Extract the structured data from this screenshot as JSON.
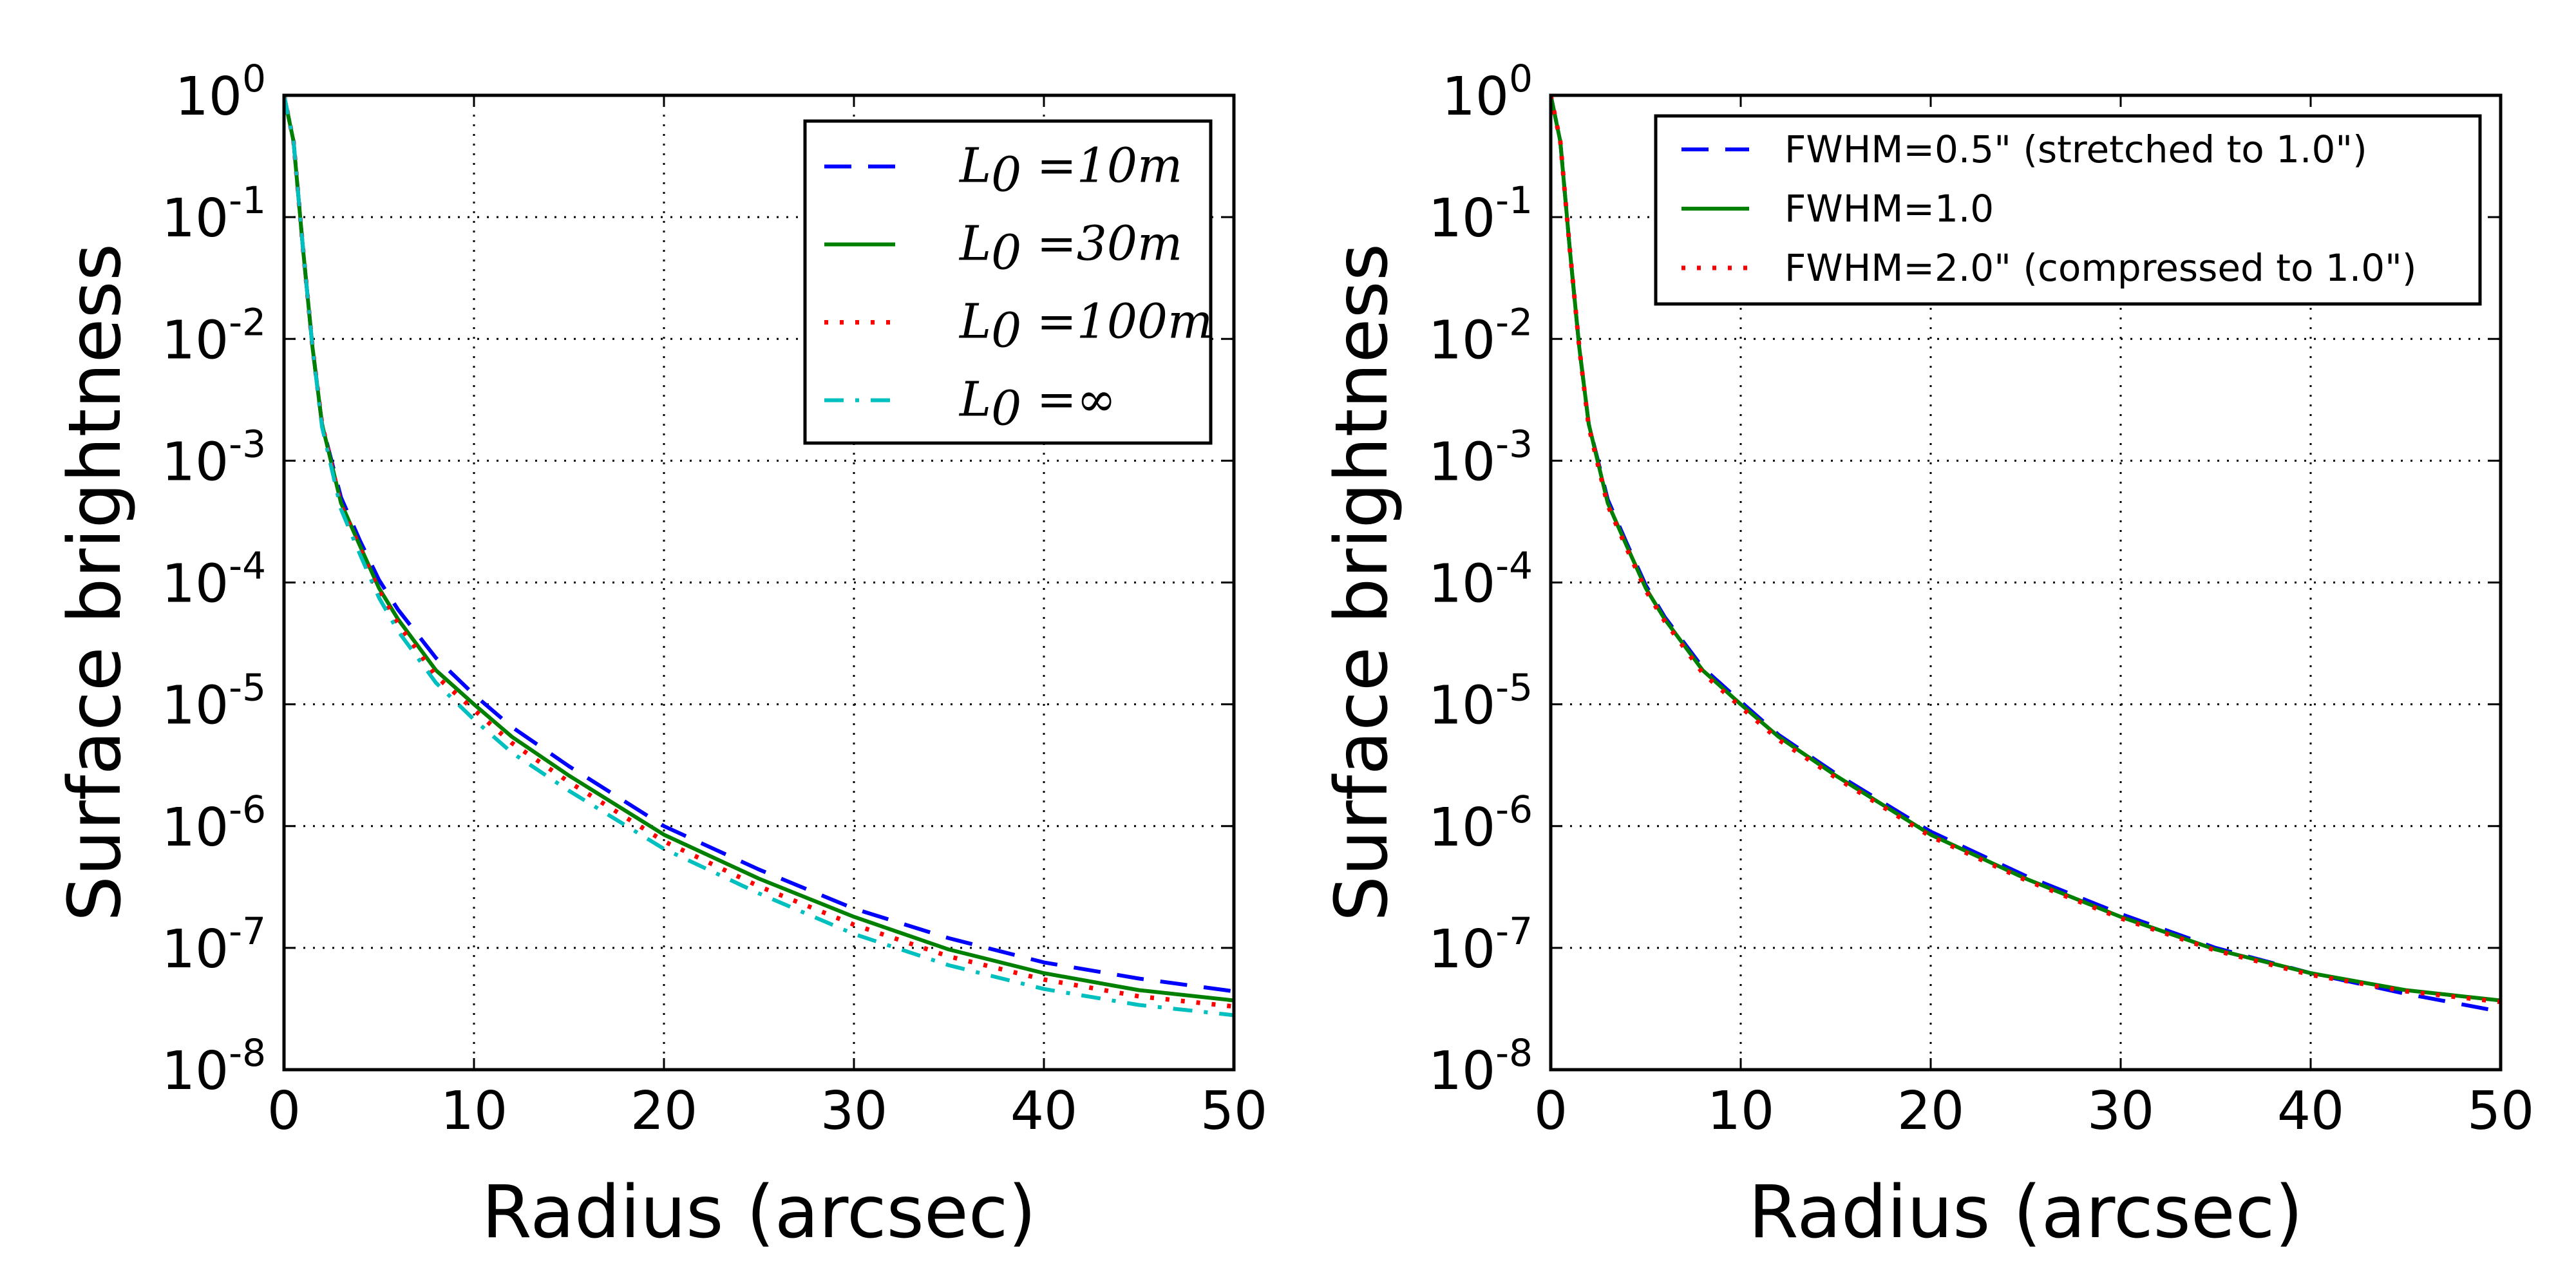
{
  "chart_data": [
    {
      "type": "line",
      "xscale": "linear",
      "yscale": "log",
      "xlabel": "Radius (arcsec)",
      "ylabel": "Surface brightness",
      "xlim": [
        0,
        50
      ],
      "ylim": [
        1e-08,
        1
      ],
      "grid": true,
      "legend_position": "top-right",
      "xticks": [
        "0",
        "10",
        "20",
        "30",
        "40",
        "50"
      ],
      "yticks": [
        {
          "base": "10",
          "exp": "0"
        },
        {
          "base": "10",
          "exp": "-1"
        },
        {
          "base": "10",
          "exp": "-2"
        },
        {
          "base": "10",
          "exp": "-3"
        },
        {
          "base": "10",
          "exp": "-4"
        },
        {
          "base": "10",
          "exp": "-5"
        },
        {
          "base": "10",
          "exp": "-6"
        },
        {
          "base": "10",
          "exp": "-7"
        },
        {
          "base": "10",
          "exp": "-8"
        }
      ],
      "series": [
        {
          "name": "L0 = 10m",
          "legend_math": "L",
          "legend_sub": "0",
          "legend_rest": " =10",
          "legend_unit": "m",
          "color": "#0000ff",
          "style": "dashed",
          "x": [
            0,
            0.5,
            1,
            1.5,
            2,
            3,
            4,
            5,
            6,
            8,
            10,
            12,
            15,
            20,
            25,
            30,
            35,
            40,
            45,
            50
          ],
          "y": [
            1,
            0.42,
            0.055,
            0.0085,
            0.002,
            0.0005,
            0.00022,
            0.000105,
            6e-05,
            2.4e-05,
            1.2e-05,
            6.5e-06,
            3.1e-06,
            1e-06,
            4.4e-07,
            2.1e-07,
            1.2e-07,
            7.6e-08,
            5.6e-08,
            4.4e-08
          ]
        },
        {
          "name": "L0 = 30m",
          "legend_math": "L",
          "legend_sub": "0",
          "legend_rest": " =30",
          "legend_unit": "m",
          "color": "#008000",
          "style": "solid",
          "x": [
            0,
            0.5,
            1,
            1.5,
            2,
            3,
            4,
            5,
            6,
            8,
            10,
            12,
            15,
            20,
            25,
            30,
            35,
            40,
            45,
            50
          ],
          "y": [
            1,
            0.42,
            0.055,
            0.0085,
            0.002,
            0.00045,
            0.0002,
            9e-05,
            5e-05,
            1.9e-05,
            1e-05,
            5.4e-06,
            2.6e-06,
            8.5e-07,
            3.7e-07,
            1.8e-07,
            9.7e-08,
            6.2e-08,
            4.5e-08,
            3.7e-08
          ]
        },
        {
          "name": "L0 = 100m",
          "legend_math": "L",
          "legend_sub": "0",
          "legend_rest": " =100",
          "legend_unit": "m",
          "color": "#ff0000",
          "style": "dotted",
          "x": [
            0,
            0.5,
            1,
            1.5,
            2,
            3,
            4,
            5,
            6,
            8,
            10,
            12,
            15,
            20,
            25,
            30,
            35,
            40,
            45,
            50
          ],
          "y": [
            1,
            0.42,
            0.055,
            0.0085,
            0.002,
            0.00043,
            0.00019,
            8.5e-05,
            4.6e-05,
            1.7e-05,
            9e-06,
            4.8e-06,
            2.3e-06,
            7.5e-07,
            3.2e-07,
            1.55e-07,
            8.5e-08,
            5.5e-08,
            4e-08,
            3.3e-08
          ]
        },
        {
          "name": "L0 = ∞",
          "legend_math": "L",
          "legend_sub": "0",
          "legend_rest": " =∞",
          "legend_unit": "",
          "color": "#00bfbf",
          "style": "dashdot",
          "x": [
            0,
            0.5,
            1,
            1.5,
            2,
            3,
            4,
            5,
            6,
            8,
            10,
            12,
            15,
            20,
            25,
            30,
            35,
            40,
            45,
            50
          ],
          "y": [
            1,
            0.42,
            0.055,
            0.0085,
            0.0019,
            0.0004,
            0.00017,
            7.5e-05,
            4e-05,
            1.5e-05,
            7.5e-06,
            4e-06,
            1.95e-06,
            6.5e-07,
            2.8e-07,
            1.3e-07,
            7.2e-08,
            4.6e-08,
            3.4e-08,
            2.8e-08
          ]
        }
      ]
    },
    {
      "type": "line",
      "xscale": "linear",
      "yscale": "log",
      "xlabel": "Radius (arcsec)",
      "ylabel": "Surface brightness",
      "xlim": [
        0,
        50
      ],
      "ylim": [
        1e-08,
        1
      ],
      "grid": true,
      "legend_position": "top-right",
      "xticks": [
        "0",
        "10",
        "20",
        "30",
        "40",
        "50"
      ],
      "yticks": [
        {
          "base": "10",
          "exp": "0"
        },
        {
          "base": "10",
          "exp": "-1"
        },
        {
          "base": "10",
          "exp": "-2"
        },
        {
          "base": "10",
          "exp": "-3"
        },
        {
          "base": "10",
          "exp": "-4"
        },
        {
          "base": "10",
          "exp": "-5"
        },
        {
          "base": "10",
          "exp": "-6"
        },
        {
          "base": "10",
          "exp": "-7"
        },
        {
          "base": "10",
          "exp": "-8"
        }
      ],
      "series": [
        {
          "name": "FWHM=0.5\" (stretched to 1.0\")",
          "color": "#0000ff",
          "style": "dashed",
          "x": [
            0,
            0.5,
            1,
            1.5,
            2,
            3,
            4,
            5,
            6,
            8,
            10,
            12,
            15,
            20,
            25,
            30,
            35,
            40,
            45,
            50
          ],
          "y": [
            1,
            0.42,
            0.055,
            0.0085,
            0.002,
            0.00048,
            0.00021,
            9.5e-05,
            5.2e-05,
            2e-05,
            1.05e-05,
            5.6e-06,
            2.7e-06,
            9e-07,
            3.9e-07,
            1.9e-07,
            1e-07,
            6.2e-08,
            4.2e-08,
            3e-08
          ]
        },
        {
          "name": "FWHM=1.0",
          "color": "#008000",
          "style": "solid",
          "x": [
            0,
            0.5,
            1,
            1.5,
            2,
            3,
            4,
            5,
            6,
            8,
            10,
            12,
            15,
            20,
            25,
            30,
            35,
            40,
            45,
            50
          ],
          "y": [
            1,
            0.42,
            0.055,
            0.0085,
            0.002,
            0.00045,
            0.0002,
            9e-05,
            5e-05,
            1.9e-05,
            1e-05,
            5.4e-06,
            2.6e-06,
            8.5e-07,
            3.7e-07,
            1.8e-07,
            9.7e-08,
            6.2e-08,
            4.5e-08,
            3.7e-08
          ]
        },
        {
          "name": "FWHM=2.0\" (compressed to 1.0\")",
          "color": "#ff0000",
          "style": "dotted",
          "x": [
            0,
            0.5,
            1,
            1.5,
            2,
            3,
            4,
            5,
            6,
            8,
            10,
            12,
            15,
            20,
            25,
            30,
            35,
            40,
            45,
            50
          ],
          "y": [
            1,
            0.42,
            0.055,
            0.0085,
            0.0019,
            0.00043,
            0.00019,
            8.6e-05,
            4.8e-05,
            1.8e-05,
            9.5e-06,
            5.1e-06,
            2.5e-06,
            8.2e-07,
            3.6e-07,
            1.75e-07,
            9.5e-08,
            6e-08,
            4.4e-08,
            3.6e-08
          ]
        }
      ]
    }
  ]
}
